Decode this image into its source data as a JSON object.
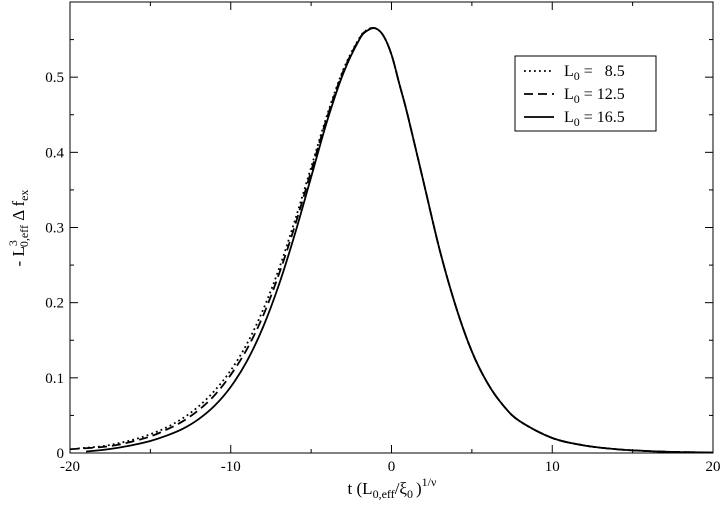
{
  "chart_data": {
    "type": "line",
    "xlabel": {
      "base": "t (L",
      "sub1": "0,eff",
      "mid": "/ξ",
      "sub2": "0",
      "close": ")",
      "sup": "1/ν"
    },
    "ylabel": {
      "prefix": "- L",
      "sup": "3",
      "sub": "0,eff",
      "mid": " Δ f",
      "sub2": "ex"
    },
    "xlim": [
      -20,
      20
    ],
    "ylim": [
      0,
      0.6
    ],
    "xticks": [
      -20,
      -10,
      0,
      10,
      20
    ],
    "yticks": [
      0,
      0.1,
      0.2,
      0.3,
      0.4,
      0.5
    ],
    "xtick_labels": [
      "-20",
      "-10",
      "0",
      "10",
      "20"
    ],
    "ytick_labels": [
      "0",
      "0.1",
      "0.2",
      "0.3",
      "0.4",
      "0.5"
    ],
    "grid": false,
    "legend_position": "top-right",
    "series": [
      {
        "name": "L0 = 8.5",
        "legend_label": {
          "base": "L",
          "sub": "0",
          "rest": " =   8.5"
        },
        "style": "dotted",
        "x": [
          -19.5,
          -18,
          -17,
          -16,
          -15,
          -14,
          -13,
          -12,
          -11,
          -10,
          -9,
          -8,
          -7,
          -6,
          -5,
          -4,
          -3,
          -2,
          -1.5,
          -1,
          -0.5,
          0,
          0.5,
          1,
          2,
          3,
          4,
          5,
          6,
          7,
          8,
          10,
          12,
          14,
          16,
          18,
          20
        ],
        "y": [
          0.006,
          0.009,
          0.013,
          0.018,
          0.025,
          0.034,
          0.046,
          0.062,
          0.083,
          0.11,
          0.145,
          0.19,
          0.245,
          0.31,
          0.38,
          0.45,
          0.51,
          0.552,
          0.563,
          0.565,
          0.555,
          0.53,
          0.49,
          0.45,
          0.36,
          0.27,
          0.195,
          0.135,
          0.092,
          0.062,
          0.042,
          0.02,
          0.01,
          0.005,
          0.0025,
          0.0012,
          0.0006
        ]
      },
      {
        "name": "L0 = 12.5",
        "legend_label": {
          "base": "L",
          "sub": "0",
          "rest": " = 12.5"
        },
        "style": "dashed",
        "x": [
          -20,
          -18,
          -17,
          -16,
          -15,
          -14,
          -13,
          -12,
          -11,
          -10,
          -9,
          -8,
          -7,
          -6,
          -5,
          -4,
          -3,
          -2,
          -1.5,
          -1,
          -0.5,
          0,
          0.5,
          1,
          2,
          3,
          4,
          5,
          6,
          7,
          8,
          10,
          12,
          14,
          16,
          18,
          20
        ],
        "y": [
          0.005,
          0.008,
          0.011,
          0.016,
          0.022,
          0.031,
          0.042,
          0.057,
          0.077,
          0.104,
          0.138,
          0.182,
          0.238,
          0.303,
          0.375,
          0.447,
          0.508,
          0.551,
          0.563,
          0.565,
          0.555,
          0.53,
          0.49,
          0.45,
          0.36,
          0.27,
          0.195,
          0.135,
          0.092,
          0.062,
          0.042,
          0.02,
          0.01,
          0.005,
          0.0025,
          0.0012,
          0.0006
        ]
      },
      {
        "name": "L0 = 16.5",
        "legend_label": {
          "base": "L",
          "sub": "0",
          "rest": " = 16.5"
        },
        "style": "solid",
        "x": [
          -19,
          -18,
          -17,
          -16,
          -15,
          -14,
          -13,
          -12,
          -11,
          -10,
          -9,
          -8,
          -7,
          -6,
          -5,
          -4,
          -3,
          -2,
          -1.5,
          -1,
          -0.5,
          0,
          0.5,
          1,
          2,
          3,
          4,
          5,
          6,
          7,
          8,
          10,
          12,
          14,
          16,
          18,
          20
        ],
        "y": [
          0.002,
          0.004,
          0.007,
          0.011,
          0.016,
          0.023,
          0.032,
          0.045,
          0.063,
          0.088,
          0.122,
          0.167,
          0.224,
          0.292,
          0.367,
          0.442,
          0.505,
          0.55,
          0.562,
          0.565,
          0.555,
          0.53,
          0.49,
          0.45,
          0.36,
          0.27,
          0.195,
          0.135,
          0.092,
          0.062,
          0.042,
          0.02,
          0.01,
          0.005,
          0.0025,
          0.0012,
          0.0006
        ]
      }
    ]
  }
}
